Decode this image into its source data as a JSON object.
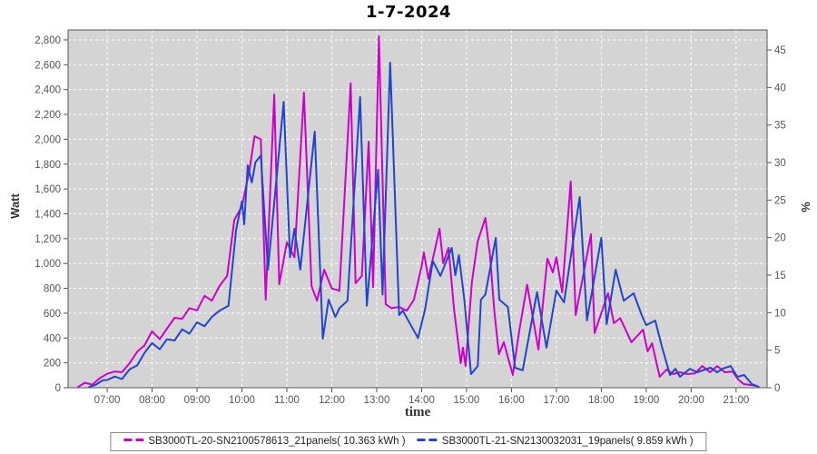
{
  "title": "1-7-2024",
  "chart_data": {
    "type": "line",
    "title": "1-7-2024",
    "xlabel": "time",
    "ylabel_left": "Watt",
    "ylabel_right": "%",
    "grid": true,
    "legend_position": "bottom",
    "plot_bg": "#d4d4d4",
    "grid_color": "#ffffff",
    "axis_text_color": "#555555",
    "x_range_hours": [
      6.13,
      21.69
    ],
    "y_left_range": [
      0,
      2880
    ],
    "y_right_range": [
      0,
      45
    ],
    "x_ticks": [
      "07:00",
      "08:00",
      "09:00",
      "10:00",
      "11:00",
      "12:00",
      "13:00",
      "14:00",
      "15:00",
      "16:00",
      "17:00",
      "18:00",
      "19:00",
      "20:00",
      "21:00"
    ],
    "x_tick_hours": [
      7,
      8,
      9,
      10,
      11,
      12,
      13,
      14,
      15,
      16,
      17,
      18,
      19,
      20,
      21
    ],
    "y_left_ticks": [
      "0",
      "200",
      "400",
      "600",
      "800",
      "1,000",
      "1,200",
      "1,400",
      "1,600",
      "1,800",
      "2,000",
      "2,200",
      "2,400",
      "2,600",
      "2,800"
    ],
    "y_left_tick_values": [
      0,
      200,
      400,
      600,
      800,
      1000,
      1200,
      1400,
      1600,
      1800,
      2000,
      2200,
      2400,
      2600,
      2800
    ],
    "y_right_ticks": [
      "0",
      "5",
      "10",
      "15",
      "20",
      "25",
      "30",
      "35",
      "40",
      "45"
    ],
    "y_right_tick_values": [
      0,
      5,
      10,
      15,
      20,
      25,
      30,
      35,
      40,
      45
    ],
    "series": [
      {
        "name": "SB3000TL-20-SN2100578613_21panels( 10.363 kWh )",
        "color": "#cc00cc",
        "points": [
          [
            6.35,
            5
          ],
          [
            6.5,
            40
          ],
          [
            6.67,
            25
          ],
          [
            6.83,
            75
          ],
          [
            7,
            112
          ],
          [
            7.17,
            130
          ],
          [
            7.33,
            125
          ],
          [
            7.5,
            197
          ],
          [
            7.67,
            290
          ],
          [
            7.83,
            340
          ],
          [
            8,
            455
          ],
          [
            8.17,
            390
          ],
          [
            8.33,
            475
          ],
          [
            8.5,
            563
          ],
          [
            8.67,
            555
          ],
          [
            8.83,
            640
          ],
          [
            9,
            623
          ],
          [
            9.17,
            740
          ],
          [
            9.33,
            700
          ],
          [
            9.5,
            819
          ],
          [
            9.67,
            900
          ],
          [
            9.83,
            1350
          ],
          [
            10,
            1460
          ],
          [
            10.17,
            1754
          ],
          [
            10.28,
            2025
          ],
          [
            10.42,
            2000
          ],
          [
            10.53,
            709
          ],
          [
            10.72,
            2360
          ],
          [
            10.83,
            833
          ],
          [
            11,
            1170
          ],
          [
            11.17,
            1050
          ],
          [
            11.38,
            2376
          ],
          [
            11.55,
            819
          ],
          [
            11.67,
            700
          ],
          [
            11.83,
            950
          ],
          [
            12,
            800
          ],
          [
            12.17,
            780
          ],
          [
            12.42,
            2450
          ],
          [
            12.53,
            841
          ],
          [
            12.67,
            900
          ],
          [
            12.82,
            1980
          ],
          [
            12.92,
            810
          ],
          [
            13.05,
            2830
          ],
          [
            13.2,
            672
          ],
          [
            13.33,
            640
          ],
          [
            13.5,
            650
          ],
          [
            13.67,
            620
          ],
          [
            13.83,
            709
          ],
          [
            14,
            980
          ],
          [
            14.05,
            1089
          ],
          [
            14.15,
            877
          ],
          [
            14.4,
            1280
          ],
          [
            14.48,
            1002
          ],
          [
            14.6,
            1126
          ],
          [
            14.72,
            636
          ],
          [
            14.87,
            197
          ],
          [
            14.92,
            322
          ],
          [
            14.98,
            175
          ],
          [
            15.12,
            855
          ],
          [
            15.25,
            1180
          ],
          [
            15.42,
            1367
          ],
          [
            15.52,
            1074
          ],
          [
            15.62,
            614
          ],
          [
            15.72,
            270
          ],
          [
            15.83,
            366
          ],
          [
            16.03,
            102
          ],
          [
            16.17,
            450
          ],
          [
            16.35,
            830
          ],
          [
            16.6,
            307
          ],
          [
            16.8,
            1040
          ],
          [
            16.92,
            928
          ],
          [
            17,
            1050
          ],
          [
            17.13,
            768
          ],
          [
            17.32,
            1660
          ],
          [
            17.43,
            585
          ],
          [
            17.77,
            1235
          ],
          [
            17.85,
            439
          ],
          [
            18.15,
            760
          ],
          [
            18.28,
            520
          ],
          [
            18.42,
            560
          ],
          [
            18.67,
            366
          ],
          [
            18.93,
            468
          ],
          [
            19.03,
            292
          ],
          [
            19.13,
            358
          ],
          [
            19.3,
            88
          ],
          [
            19.45,
            146
          ],
          [
            19.6,
            110
          ],
          [
            19.75,
            124
          ],
          [
            19.92,
            110
          ],
          [
            20.08,
            115
          ],
          [
            20.25,
            175
          ],
          [
            20.42,
            124
          ],
          [
            20.58,
            175
          ],
          [
            20.75,
            124
          ],
          [
            20.92,
            130
          ],
          [
            21.05,
            66
          ],
          [
            21.17,
            29
          ],
          [
            21.33,
            22
          ],
          [
            21.45,
            15
          ]
        ]
      },
      {
        "name": "SB3000TL-21-SN2130032031_19panels( 9.859 kWh )",
        "color": "#2244cc",
        "points": [
          [
            6.6,
            5
          ],
          [
            6.75,
            25
          ],
          [
            6.9,
            60
          ],
          [
            7,
            62
          ],
          [
            7.17,
            90
          ],
          [
            7.33,
            70
          ],
          [
            7.5,
            148
          ],
          [
            7.67,
            180
          ],
          [
            7.83,
            280
          ],
          [
            8,
            360
          ],
          [
            8.17,
            310
          ],
          [
            8.33,
            390
          ],
          [
            8.5,
            380
          ],
          [
            8.67,
            470
          ],
          [
            8.83,
            435
          ],
          [
            9,
            526
          ],
          [
            9.17,
            495
          ],
          [
            9.33,
            570
          ],
          [
            9.5,
            620
          ],
          [
            9.7,
            660
          ],
          [
            9.87,
            1272
          ],
          [
            10,
            1500
          ],
          [
            10.05,
            1316
          ],
          [
            10.13,
            1791
          ],
          [
            10.22,
            1652
          ],
          [
            10.3,
            1815
          ],
          [
            10.42,
            1870
          ],
          [
            10.58,
            950
          ],
          [
            10.93,
            2300
          ],
          [
            11.07,
            1050
          ],
          [
            11.17,
            1280
          ],
          [
            11.3,
            950
          ],
          [
            11.62,
            2062
          ],
          [
            11.8,
            395
          ],
          [
            11.93,
            709
          ],
          [
            12.08,
            570
          ],
          [
            12.17,
            640
          ],
          [
            12.35,
            700
          ],
          [
            12.63,
            2340
          ],
          [
            12.78,
            660
          ],
          [
            13.03,
            1754
          ],
          [
            13.13,
            750
          ],
          [
            13.3,
            2617
          ],
          [
            13.5,
            585
          ],
          [
            13.58,
            620
          ],
          [
            13.92,
            400
          ],
          [
            14.08,
            636
          ],
          [
            14.25,
            1020
          ],
          [
            14.42,
            900
          ],
          [
            14.67,
            1126
          ],
          [
            14.75,
            906
          ],
          [
            14.83,
            1067
          ],
          [
            14.95,
            709
          ],
          [
            15.1,
            110
          ],
          [
            15.25,
            175
          ],
          [
            15.32,
            709
          ],
          [
            15.42,
            750
          ],
          [
            15.65,
            1206
          ],
          [
            15.73,
            709
          ],
          [
            15.92,
            650
          ],
          [
            16.08,
            161
          ],
          [
            16.25,
            140
          ],
          [
            16.57,
            770
          ],
          [
            16.78,
            322
          ],
          [
            17,
            782
          ],
          [
            17.17,
            687
          ],
          [
            17.52,
            1535
          ],
          [
            17.68,
            541
          ],
          [
            18,
            1206
          ],
          [
            18.12,
            512
          ],
          [
            18.32,
            950
          ],
          [
            18.5,
            700
          ],
          [
            18.72,
            760
          ],
          [
            18.9,
            585
          ],
          [
            19,
            504
          ],
          [
            19.2,
            541
          ],
          [
            19.35,
            329
          ],
          [
            19.53,
            102
          ],
          [
            19.65,
            153
          ],
          [
            19.75,
            88
          ],
          [
            19.97,
            153
          ],
          [
            20.13,
            124
          ],
          [
            20.43,
            161
          ],
          [
            20.58,
            124
          ],
          [
            20.7,
            153
          ],
          [
            20.88,
            175
          ],
          [
            21.03,
            88
          ],
          [
            21.18,
            102
          ],
          [
            21.35,
            29
          ],
          [
            21.42,
            20
          ],
          [
            21.5,
            7
          ]
        ]
      }
    ]
  }
}
